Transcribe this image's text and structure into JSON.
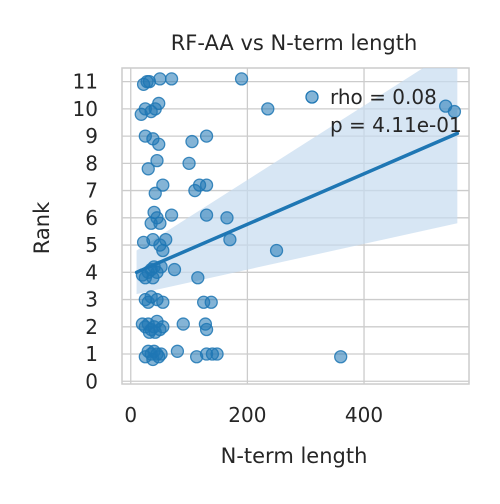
{
  "chart_data": {
    "type": "scatter",
    "title": "RF-AA vs N-term length",
    "xlabel": "N-term length",
    "ylabel": "Rank",
    "xlim": [
      -15,
      580
    ],
    "ylim": [
      -0.1,
      11.5
    ],
    "xticks": [
      "0",
      "200",
      "400"
    ],
    "xtick_values": [
      0,
      200,
      400
    ],
    "yticks": [
      "0",
      "1",
      "2",
      "3",
      "4",
      "5",
      "6",
      "7",
      "8",
      "9",
      "10",
      "11"
    ],
    "yticks_values": [
      0,
      1,
      2,
      3,
      4,
      5,
      6,
      7,
      8,
      9,
      10,
      11
    ],
    "grid": true,
    "annotations": [
      "rho = 0.08",
      "p = 4.11e-01"
    ],
    "annotation_position": "top-right",
    "point_color": "#1f77b4",
    "line_color": "#1f77b4",
    "band_color": "#c6dbef",
    "regression": {
      "x": [
        10,
        560
      ],
      "y": [
        4.0,
        9.1
      ],
      "ci_lower": [
        3.2,
        5.8
      ],
      "ci_upper": [
        4.8,
        12.3
      ]
    },
    "points": [
      {
        "x": 22,
        "y": 10.9
      },
      {
        "x": 28,
        "y": 11.0
      },
      {
        "x": 32,
        "y": 11.0
      },
      {
        "x": 50,
        "y": 11.1
      },
      {
        "x": 70,
        "y": 11.1
      },
      {
        "x": 190,
        "y": 11.1
      },
      {
        "x": 540,
        "y": 10.1
      },
      {
        "x": 555,
        "y": 9.9
      },
      {
        "x": 18,
        "y": 9.8
      },
      {
        "x": 25,
        "y": 10.0
      },
      {
        "x": 35,
        "y": 9.9
      },
      {
        "x": 42,
        "y": 10.0
      },
      {
        "x": 48,
        "y": 10.2
      },
      {
        "x": 235,
        "y": 10.0
      },
      {
        "x": 25,
        "y": 9.0
      },
      {
        "x": 38,
        "y": 8.9
      },
      {
        "x": 48,
        "y": 8.7
      },
      {
        "x": 105,
        "y": 8.8
      },
      {
        "x": 130,
        "y": 9.0
      },
      {
        "x": 30,
        "y": 7.8
      },
      {
        "x": 45,
        "y": 8.1
      },
      {
        "x": 100,
        "y": 8.0
      },
      {
        "x": 42,
        "y": 6.9
      },
      {
        "x": 55,
        "y": 7.2
      },
      {
        "x": 110,
        "y": 7.0
      },
      {
        "x": 118,
        "y": 7.2
      },
      {
        "x": 130,
        "y": 7.2
      },
      {
        "x": 35,
        "y": 5.8
      },
      {
        "x": 40,
        "y": 6.2
      },
      {
        "x": 45,
        "y": 6.0
      },
      {
        "x": 50,
        "y": 5.8
      },
      {
        "x": 70,
        "y": 6.1
      },
      {
        "x": 130,
        "y": 6.1
      },
      {
        "x": 165,
        "y": 6.0
      },
      {
        "x": 22,
        "y": 5.1
      },
      {
        "x": 38,
        "y": 5.2
      },
      {
        "x": 50,
        "y": 5.0
      },
      {
        "x": 60,
        "y": 5.2
      },
      {
        "x": 55,
        "y": 4.8
      },
      {
        "x": 170,
        "y": 5.2
      },
      {
        "x": 250,
        "y": 4.8
      },
      {
        "x": 25,
        "y": 3.8
      },
      {
        "x": 30,
        "y": 4.0
      },
      {
        "x": 35,
        "y": 4.1
      },
      {
        "x": 40,
        "y": 4.2
      },
      {
        "x": 45,
        "y": 4.0
      },
      {
        "x": 52,
        "y": 4.2
      },
      {
        "x": 75,
        "y": 4.1
      },
      {
        "x": 115,
        "y": 3.8
      },
      {
        "x": 20,
        "y": 3.9
      },
      {
        "x": 38,
        "y": 3.8
      },
      {
        "x": 30,
        "y": 2.9
      },
      {
        "x": 35,
        "y": 3.1
      },
      {
        "x": 45,
        "y": 3.0
      },
      {
        "x": 55,
        "y": 2.9
      },
      {
        "x": 125,
        "y": 2.9
      },
      {
        "x": 138,
        "y": 2.9
      },
      {
        "x": 25,
        "y": 3.0
      },
      {
        "x": 20,
        "y": 2.1
      },
      {
        "x": 25,
        "y": 2.0
      },
      {
        "x": 30,
        "y": 2.1
      },
      {
        "x": 35,
        "y": 1.9
      },
      {
        "x": 40,
        "y": 2.0
      },
      {
        "x": 45,
        "y": 2.2
      },
      {
        "x": 50,
        "y": 1.9
      },
      {
        "x": 55,
        "y": 2.0
      },
      {
        "x": 90,
        "y": 2.1
      },
      {
        "x": 128,
        "y": 2.1
      },
      {
        "x": 130,
        "y": 1.9
      },
      {
        "x": 32,
        "y": 1.8
      },
      {
        "x": 42,
        "y": 1.8
      },
      {
        "x": 25,
        "y": 0.9
      },
      {
        "x": 30,
        "y": 1.1
      },
      {
        "x": 35,
        "y": 1.0
      },
      {
        "x": 38,
        "y": 0.8
      },
      {
        "x": 40,
        "y": 1.1
      },
      {
        "x": 45,
        "y": 1.0
      },
      {
        "x": 48,
        "y": 0.9
      },
      {
        "x": 52,
        "y": 1.0
      },
      {
        "x": 80,
        "y": 1.1
      },
      {
        "x": 113,
        "y": 0.9
      },
      {
        "x": 130,
        "y": 1.0
      },
      {
        "x": 140,
        "y": 1.0
      },
      {
        "x": 148,
        "y": 1.0
      },
      {
        "x": 360,
        "y": 0.9
      }
    ]
  }
}
